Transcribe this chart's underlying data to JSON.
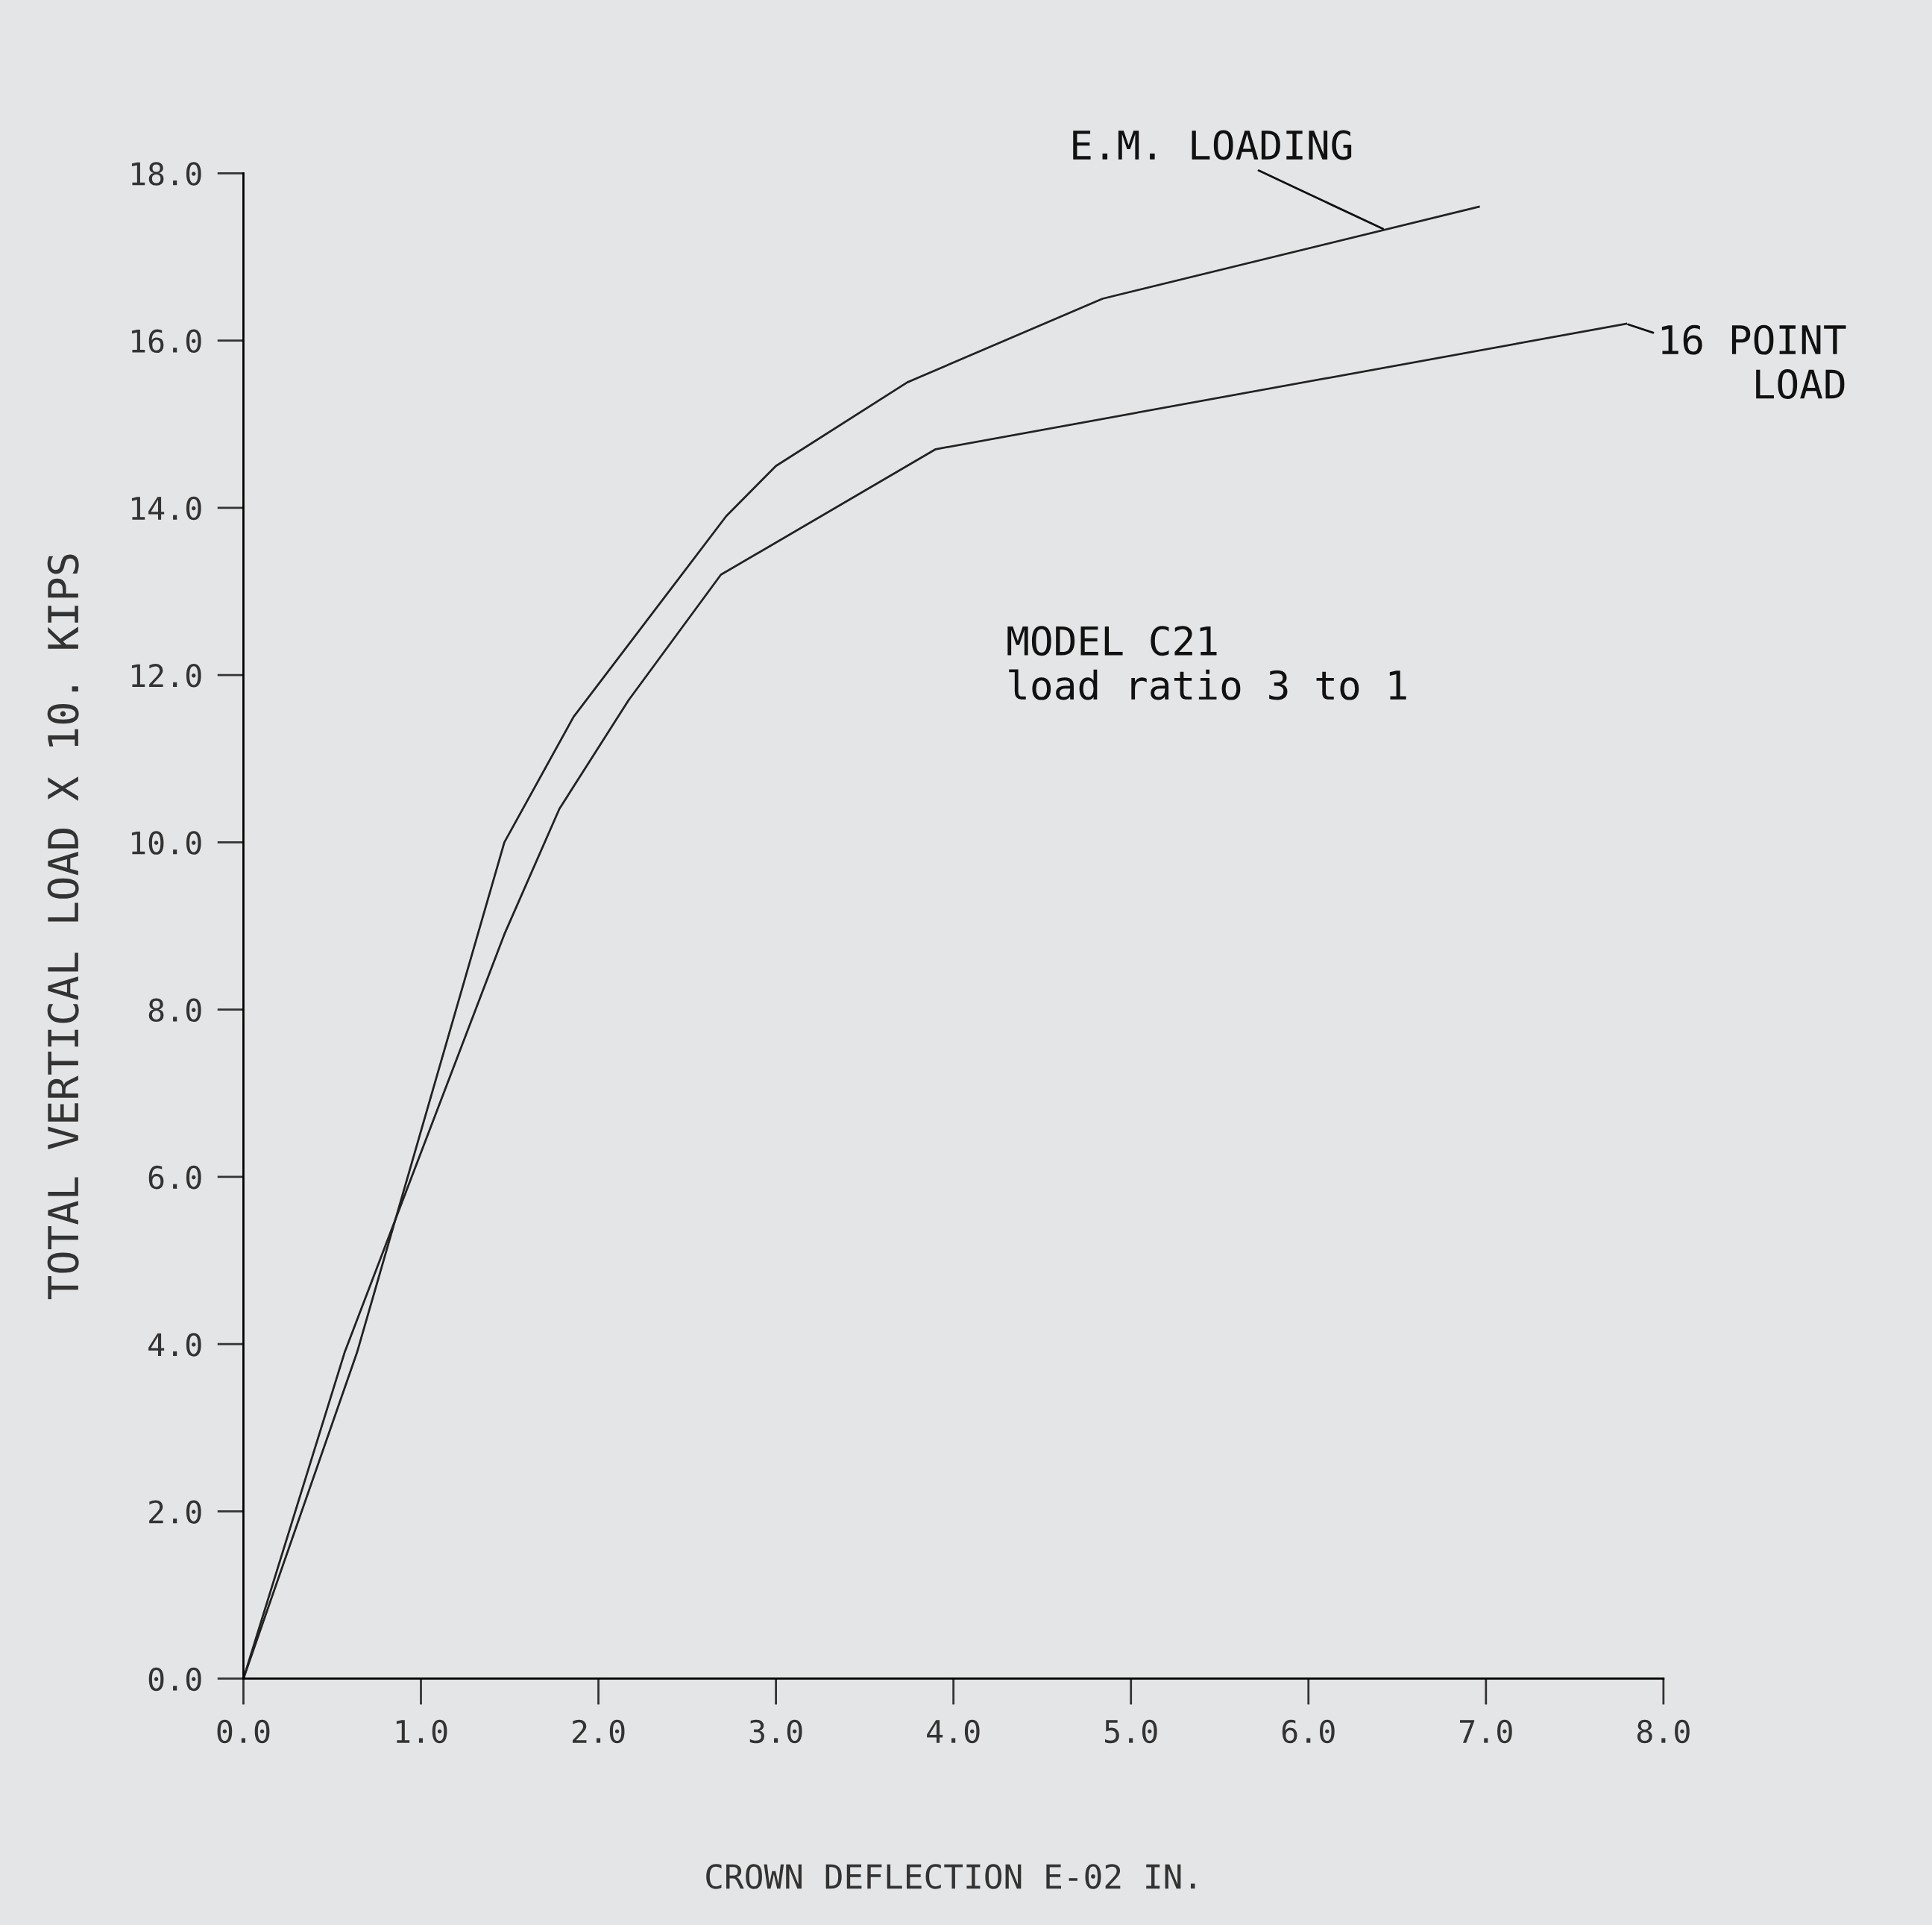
{
  "chart_data": {
    "type": "line",
    "xlabel": "CROWN DEFLECTION E-02 IN.",
    "ylabel": "TOTAL VERTICAL LOAD X 10. KIPS",
    "xlim": [
      0,
      8
    ],
    "ylim": [
      0,
      18
    ],
    "xticks": [
      {
        "value": 0,
        "label": "0.0"
      },
      {
        "value": 1,
        "label": "1.0"
      },
      {
        "value": 2,
        "label": "2.0"
      },
      {
        "value": 3,
        "label": "3.0"
      },
      {
        "value": 4,
        "label": "4.0"
      },
      {
        "value": 5,
        "label": "5.0"
      },
      {
        "value": 6,
        "label": "6.0"
      },
      {
        "value": 7,
        "label": "7.0"
      },
      {
        "value": 8,
        "label": "8.0"
      }
    ],
    "yticks": [
      {
        "value": 0,
        "label": "0.0"
      },
      {
        "value": 2,
        "label": "2.0"
      },
      {
        "value": 4,
        "label": "4.0"
      },
      {
        "value": 6,
        "label": "6.0"
      },
      {
        "value": 8,
        "label": "8.0"
      },
      {
        "value": 10,
        "label": "10.0"
      },
      {
        "value": 12,
        "label": "12.0"
      },
      {
        "value": 14,
        "label": "14.0"
      },
      {
        "value": 16,
        "label": "16.0"
      },
      {
        "value": 18,
        "label": "18.0"
      }
    ],
    "series": [
      {
        "name": "E.M. LOADING",
        "color": "#222222",
        "x": [
          0,
          0.64,
          1.47,
          1.86,
          2.72,
          3.0,
          3.74,
          4.84,
          6.96
        ],
        "values": [
          0,
          3.9,
          10.0,
          11.5,
          13.9,
          14.5,
          15.5,
          16.5,
          17.6
        ]
      },
      {
        "name": "16 POINT\nLOAD",
        "color": "#222222",
        "x": [
          0,
          0.57,
          1.47,
          1.78,
          2.17,
          2.69,
          3.9,
          7.79
        ],
        "values": [
          0,
          3.9,
          8.9,
          10.4,
          11.7,
          13.2,
          14.7,
          16.2
        ]
      }
    ],
    "annotations": [
      "MODEL C21\nload ratio 3 to 1"
    ],
    "grid": false,
    "legend": false,
    "marker": "none",
    "line_style": "solid"
  }
}
